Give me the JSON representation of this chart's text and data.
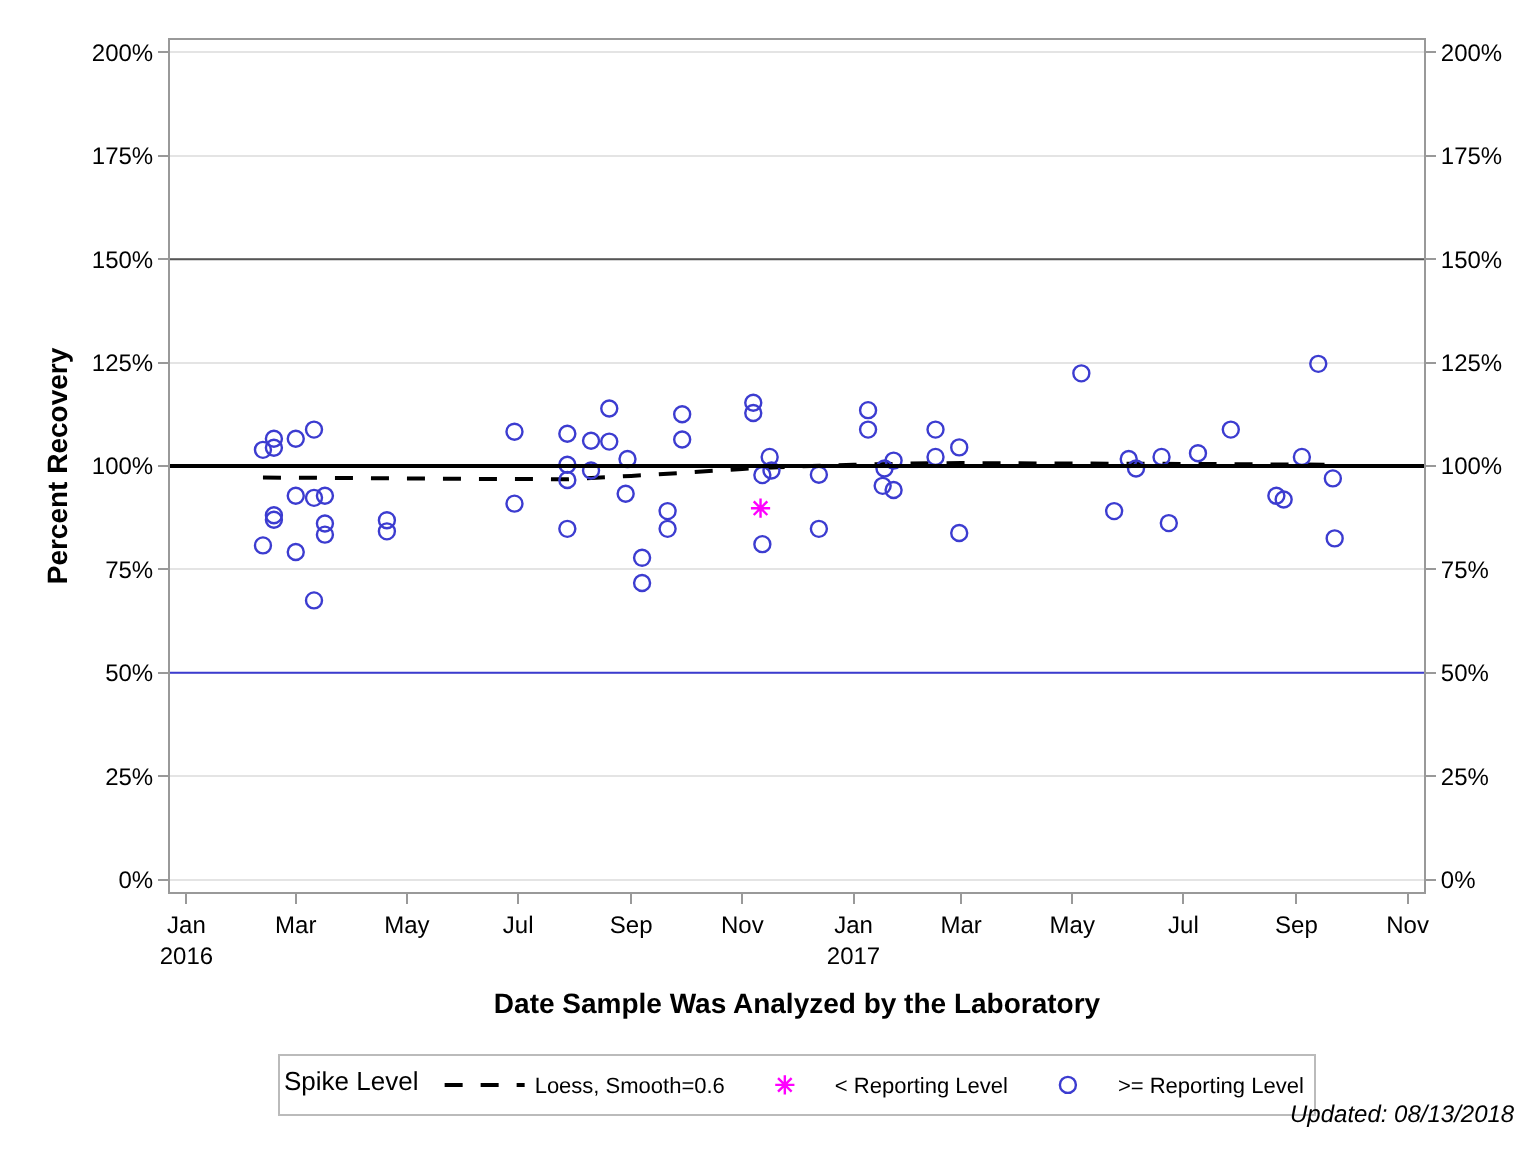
{
  "chart_data": {
    "type": "scatter",
    "xlabel": "Date Sample Was Analyzed by the Laboratory",
    "ylabel": "Percent Recovery",
    "legend_title": "Spike Level",
    "legend": "bottom",
    "grid": "y",
    "xlim": [
      "2015-12-23",
      "2017-11-10"
    ],
    "xticks": [
      {
        "value": "2016-01-01",
        "label": "Jan\n2016"
      },
      {
        "value": "2016-03-01",
        "label": "Mar"
      },
      {
        "value": "2016-05-01",
        "label": "May"
      },
      {
        "value": "2016-07-01",
        "label": "Jul"
      },
      {
        "value": "2016-09-01",
        "label": "Sep"
      },
      {
        "value": "2016-11-01",
        "label": "Nov"
      },
      {
        "value": "2017-01-01",
        "label": "Jan\n2017"
      },
      {
        "value": "2017-03-01",
        "label": "Mar"
      },
      {
        "value": "2017-05-01",
        "label": "May"
      },
      {
        "value": "2017-07-01",
        "label": "Jul"
      },
      {
        "value": "2017-09-01",
        "label": "Sep"
      },
      {
        "value": "2017-11-01",
        "label": "Nov"
      }
    ],
    "ylim": [
      -3,
      203
    ],
    "yticks": [
      {
        "value": 0,
        "label": "0%"
      },
      {
        "value": 25,
        "label": "25%"
      },
      {
        "value": 50,
        "label": "50%"
      },
      {
        "value": 75,
        "label": "75%"
      },
      {
        "value": 100,
        "label": "100%"
      },
      {
        "value": 125,
        "label": "125%"
      },
      {
        "value": 150,
        "label": "150%"
      },
      {
        "value": 175,
        "label": "175%"
      },
      {
        "value": 200,
        "label": "200%"
      }
    ],
    "y2lim": [
      -3,
      203
    ],
    "y2ticks": [
      {
        "value": 0,
        "label": "0%"
      },
      {
        "value": 25,
        "label": "25%"
      },
      {
        "value": 50,
        "label": "50%"
      },
      {
        "value": 75,
        "label": "75%"
      },
      {
        "value": 100,
        "label": "100%"
      },
      {
        "value": 125,
        "label": "125%"
      },
      {
        "value": 150,
        "label": "150%"
      },
      {
        "value": 175,
        "label": "175%"
      },
      {
        "value": 200,
        "label": "200%"
      }
    ],
    "ref_lines": [
      {
        "axis": "y",
        "value": 100,
        "color": "#000000"
      },
      {
        "axis": "y",
        "value": 150,
        "color": "#555555"
      },
      {
        "axis": "y",
        "value": 50,
        "color": "#3c3cd0"
      }
    ],
    "series": [
      {
        "name": "Loess, Smooth=0.6",
        "type": "line",
        "color": "#000000",
        "line_style": "dashed",
        "marker": "none",
        "x": [
          "2016-02-12",
          "2016-04-01",
          "2016-06-01",
          "2016-07-28",
          "2016-09-01",
          "2016-10-01",
          "2016-11-01",
          "2016-12-01",
          "2017-01-01",
          "2017-02-01",
          "2017-03-01",
          "2017-05-01",
          "2017-07-01",
          "2017-09-22"
        ],
        "values": [
          97.2,
          97.1,
          96.9,
          96.8,
          97.6,
          98.4,
          99.3,
          99.9,
          100.3,
          100.6,
          100.7,
          100.6,
          100.5,
          100.3
        ]
      },
      {
        "name": "< Reporting Level",
        "type": "scatter",
        "color": "#ff00ff",
        "marker": "cross",
        "x": [
          "2016-11-11"
        ],
        "values": [
          89.8
        ]
      },
      {
        "name": ">= Reporting Level",
        "type": "scatter",
        "color": "#3c3cd0",
        "marker": "circle",
        "x": [
          "2016-02-12",
          "2016-02-18",
          "2016-02-18",
          "2016-03-01",
          "2016-03-11",
          "2016-03-01",
          "2016-03-11",
          "2016-03-17",
          "2016-02-18",
          "2016-02-18",
          "2016-02-12",
          "2016-03-01",
          "2016-03-17",
          "2016-03-17",
          "2016-03-11",
          "2016-04-20",
          "2016-04-20",
          "2016-06-29",
          "2016-06-29",
          "2016-07-28",
          "2016-07-28",
          "2016-07-28",
          "2016-07-28",
          "2016-08-10",
          "2016-08-10",
          "2016-08-20",
          "2016-08-20",
          "2016-08-30",
          "2016-08-29",
          "2016-09-07",
          "2016-09-07",
          "2016-09-21",
          "2016-09-21",
          "2016-09-29",
          "2016-09-29",
          "2016-11-07",
          "2016-11-07",
          "2016-11-12",
          "2016-11-12",
          "2016-11-16",
          "2016-11-17",
          "2016-12-13",
          "2016-12-13",
          "2017-01-09",
          "2017-01-09",
          "2017-01-17",
          "2017-01-18",
          "2017-01-23",
          "2017-01-23",
          "2017-02-15",
          "2017-02-15",
          "2017-02-28",
          "2017-02-28",
          "2017-05-06",
          "2017-05-24",
          "2017-06-01",
          "2017-06-05",
          "2017-06-19",
          "2017-06-23",
          "2017-07-09",
          "2017-07-27",
          "2017-08-21",
          "2017-08-25",
          "2017-09-04",
          "2017-09-13",
          "2017-09-21",
          "2017-09-22"
        ],
        "values": [
          103.9,
          104.4,
          106.6,
          106.6,
          108.8,
          92.8,
          92.3,
          92.8,
          88.1,
          87.0,
          80.8,
          79.2,
          86.1,
          83.4,
          67.5,
          86.9,
          84.2,
          108.3,
          90.9,
          107.8,
          100.3,
          96.6,
          84.8,
          106.1,
          98.9,
          113.9,
          105.9,
          101.7,
          93.3,
          77.8,
          71.7,
          89.1,
          84.8,
          112.5,
          106.4,
          115.3,
          112.8,
          97.8,
          81.1,
          102.2,
          98.9,
          97.9,
          84.8,
          113.5,
          108.8,
          95.2,
          99.4,
          101.3,
          94.2,
          108.8,
          102.2,
          104.5,
          83.8,
          122.4,
          89.1,
          101.7,
          99.4,
          102.2,
          86.2,
          103.1,
          108.8,
          92.8,
          91.9,
          102.2,
          124.7,
          97.0,
          82.5
        ]
      }
    ],
    "annotations": [
      "Updated: 08/13/2018"
    ]
  }
}
